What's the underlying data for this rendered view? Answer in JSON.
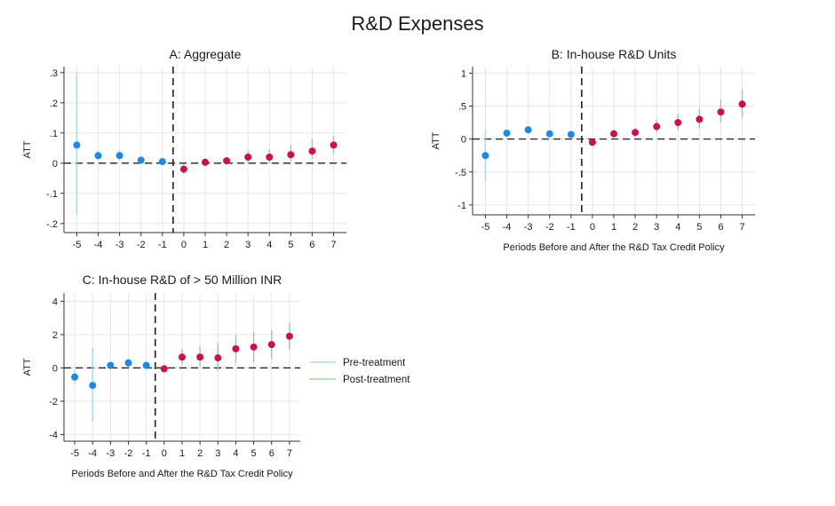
{
  "figure_title": "R&D Expenses",
  "legend": [
    {
      "label": "Pre-treatment",
      "color": "#a8d4ee"
    },
    {
      "label": "Post-treatment",
      "color": "#8fcf8f"
    }
  ],
  "colors": {
    "pre_marker": "#1e88e5",
    "post_marker": "#cc0f55",
    "gridline": "#e6e6e6"
  },
  "chart_data": [
    {
      "type": "scatter",
      "title": "A: Aggregate",
      "xlabel": "",
      "ylabel": "ATT",
      "x": [
        -5,
        -4,
        -3,
        -2,
        -1,
        0,
        1,
        2,
        3,
        4,
        5,
        6,
        7
      ],
      "xticks": [
        "-5",
        "-4",
        "-3",
        "-2",
        "-1",
        "0",
        "1",
        "2",
        "3",
        "4",
        "5",
        "6",
        "7"
      ],
      "yticks": [
        -0.2,
        -0.1,
        0,
        0.1,
        0.2,
        0.3
      ],
      "ytick_labels": [
        "-.2",
        "-.1",
        "0",
        ".1",
        ".2",
        ".3"
      ],
      "ylim": [
        -0.23,
        0.32
      ],
      "grid": true,
      "treatment_line_x": -0.5,
      "series": [
        {
          "name": "Pre-treatment",
          "x": [
            -5,
            -4,
            -3,
            -2,
            -1
          ],
          "y": [
            0.06,
            0.025,
            0.025,
            0.01,
            0.005
          ],
          "ci_low": [
            -0.17,
            0.01,
            0.01,
            0.0,
            -0.005
          ],
          "ci_high": [
            0.3,
            0.04,
            0.04,
            0.02,
            0.015
          ]
        },
        {
          "name": "Post-treatment",
          "x": [
            0,
            1,
            2,
            3,
            4,
            5,
            6,
            7
          ],
          "y": [
            -0.02,
            0.003,
            0.008,
            0.02,
            0.02,
            0.028,
            0.04,
            0.06
          ],
          "ci_low": [
            -0.035,
            -0.01,
            -0.005,
            0.0,
            0.0,
            0.005,
            0.015,
            0.03
          ],
          "ci_high": [
            -0.005,
            0.015,
            0.02,
            0.04,
            0.045,
            0.06,
            0.08,
            0.09
          ]
        }
      ]
    },
    {
      "type": "scatter",
      "title": "B: In-house R&D Units",
      "xlabel": "Periods Before and After the R&D Tax Credit Policy",
      "ylabel": "ATT",
      "x": [
        -5,
        -4,
        -3,
        -2,
        -1,
        0,
        1,
        2,
        3,
        4,
        5,
        6,
        7
      ],
      "xticks": [
        "-5",
        "-4",
        "-3",
        "-2",
        "-1",
        "0",
        "1",
        "2",
        "3",
        "4",
        "5",
        "6",
        "7"
      ],
      "yticks": [
        -1,
        -0.5,
        0,
        0.5,
        1
      ],
      "ytick_labels": [
        "-1",
        "-.5",
        "0",
        ".5",
        "1"
      ],
      "ylim": [
        -1.15,
        1.1
      ],
      "grid": true,
      "treatment_line_x": -0.5,
      "series": [
        {
          "name": "Pre-treatment",
          "x": [
            -5,
            -4,
            -3,
            -2,
            -1
          ],
          "y": [
            -0.25,
            0.09,
            0.14,
            0.08,
            0.07
          ],
          "ci_low": [
            -0.65,
            0.05,
            0.1,
            0.04,
            0.03
          ],
          "ci_high": [
            0.15,
            0.13,
            0.18,
            0.12,
            0.11
          ]
        },
        {
          "name": "Post-treatment",
          "x": [
            0,
            1,
            2,
            3,
            4,
            5,
            6,
            7
          ],
          "y": [
            -0.05,
            0.08,
            0.1,
            0.19,
            0.25,
            0.3,
            0.41,
            0.53
          ],
          "ci_low": [
            -0.08,
            0.02,
            0.03,
            0.1,
            0.14,
            0.16,
            0.25,
            0.33
          ],
          "ci_high": [
            -0.02,
            0.14,
            0.17,
            0.3,
            0.38,
            0.46,
            0.6,
            0.75
          ]
        }
      ]
    },
    {
      "type": "scatter",
      "title": "C: In-house R&D of > 50 Million INR",
      "xlabel": "Periods Before and After the R&D Tax Credit Policy",
      "ylabel": "ATT",
      "x": [
        -5,
        -4,
        -3,
        -2,
        -1,
        0,
        1,
        2,
        3,
        4,
        5,
        6,
        7
      ],
      "xticks": [
        "-5",
        "-4",
        "-3",
        "-2",
        "-1",
        "0",
        "1",
        "2",
        "3",
        "4",
        "5",
        "6",
        "7"
      ],
      "yticks": [
        -4,
        -2,
        0,
        2,
        4
      ],
      "ytick_labels": [
        "-4",
        "-2",
        "0",
        "2",
        "4"
      ],
      "ylim": [
        -4.4,
        4.5
      ],
      "grid": true,
      "treatment_line_x": -0.5,
      "series": [
        {
          "name": "Pre-treatment",
          "x": [
            -5,
            -4,
            -3,
            -2,
            -1
          ],
          "y": [
            -0.55,
            -1.05,
            0.15,
            0.3,
            0.15
          ],
          "ci_low": [
            -1.0,
            -3.2,
            -0.1,
            0.05,
            -0.1
          ],
          "ci_high": [
            -0.1,
            1.2,
            0.4,
            0.55,
            0.4
          ]
        },
        {
          "name": "Post-treatment",
          "x": [
            0,
            1,
            2,
            3,
            4,
            5,
            6,
            7
          ],
          "y": [
            -0.05,
            0.65,
            0.65,
            0.6,
            1.15,
            1.25,
            1.4,
            1.9
          ],
          "ci_low": [
            -0.2,
            0.2,
            0.05,
            -0.2,
            0.3,
            0.35,
            0.55,
            1.1
          ],
          "ci_high": [
            0.1,
            1.1,
            1.3,
            1.5,
            2.0,
            2.15,
            2.25,
            2.7
          ]
        }
      ]
    }
  ]
}
